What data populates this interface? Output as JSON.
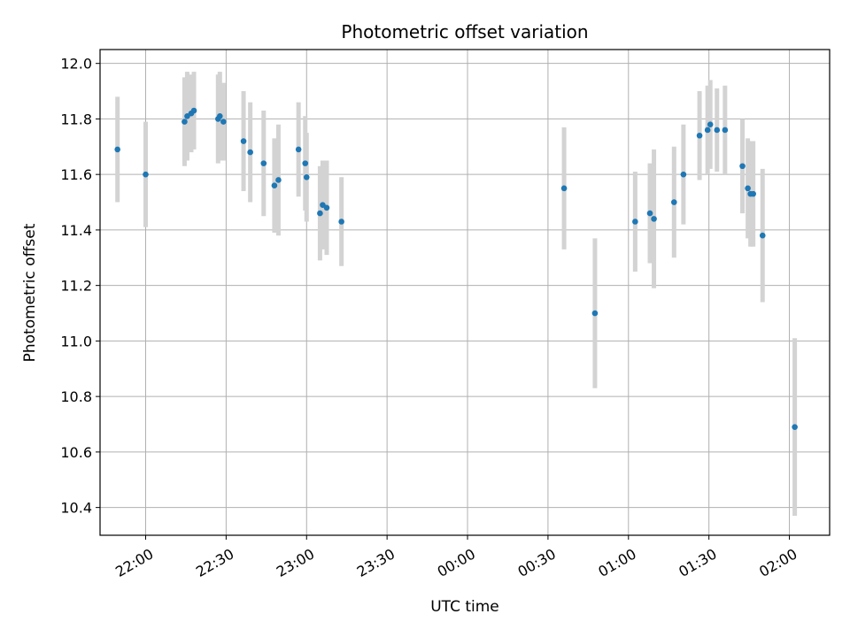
{
  "chart_data": {
    "type": "scatter",
    "title": "Photometric offset variation",
    "xlabel": "UTC time",
    "ylabel": "Photometric offset",
    "xlim": [
      "21:43",
      "02:15"
    ],
    "ylim": [
      10.3,
      12.05
    ],
    "x_ticks": [
      "22:00",
      "22:30",
      "23:00",
      "23:30",
      "00:00",
      "00:30",
      "01:00",
      "01:30",
      "02:00"
    ],
    "y_ticks": [
      10.4,
      10.6,
      10.8,
      11.0,
      11.2,
      11.4,
      11.6,
      11.8,
      12.0
    ],
    "grid": true,
    "marker_color": "#1f77b4",
    "errorbar_color": "#d3d3d3",
    "points": [
      {
        "x": "21:49:30",
        "y": 11.69,
        "err": 0.19
      },
      {
        "x": "22:00:00",
        "y": 11.6,
        "err": 0.19
      },
      {
        "x": "22:14:30",
        "y": 11.79,
        "err": 0.16
      },
      {
        "x": "22:15:30",
        "y": 11.81,
        "err": 0.16
      },
      {
        "x": "22:17:00",
        "y": 11.82,
        "err": 0.14
      },
      {
        "x": "22:18:00",
        "y": 11.83,
        "err": 0.14
      },
      {
        "x": "22:27:00",
        "y": 11.8,
        "err": 0.16
      },
      {
        "x": "22:27:40",
        "y": 11.81,
        "err": 0.16
      },
      {
        "x": "22:29:00",
        "y": 11.79,
        "err": 0.14
      },
      {
        "x": "22:36:30",
        "y": 11.72,
        "err": 0.18
      },
      {
        "x": "22:39:00",
        "y": 11.68,
        "err": 0.18
      },
      {
        "x": "22:44:00",
        "y": 11.64,
        "err": 0.19
      },
      {
        "x": "22:48:00",
        "y": 11.56,
        "err": 0.17
      },
      {
        "x": "22:49:30",
        "y": 11.58,
        "err": 0.2
      },
      {
        "x": "22:57:00",
        "y": 11.69,
        "err": 0.17
      },
      {
        "x": "22:59:30",
        "y": 11.64,
        "err": 0.17
      },
      {
        "x": "23:00:00",
        "y": 11.59,
        "err": 0.16
      },
      {
        "x": "23:05:00",
        "y": 11.46,
        "err": 0.17
      },
      {
        "x": "23:06:00",
        "y": 11.49,
        "err": 0.16
      },
      {
        "x": "23:07:30",
        "y": 11.48,
        "err": 0.17
      },
      {
        "x": "23:13:00",
        "y": 11.43,
        "err": 0.16
      },
      {
        "x": "00:36:00",
        "y": 11.55,
        "err": 0.22
      },
      {
        "x": "00:47:30",
        "y": 11.1,
        "err": 0.27
      },
      {
        "x": "01:02:30",
        "y": 11.43,
        "err": 0.18
      },
      {
        "x": "01:08:00",
        "y": 11.46,
        "err": 0.18
      },
      {
        "x": "01:09:30",
        "y": 11.44,
        "err": 0.25
      },
      {
        "x": "01:17:00",
        "y": 11.5,
        "err": 0.2
      },
      {
        "x": "01:20:30",
        "y": 11.6,
        "err": 0.18
      },
      {
        "x": "01:26:30",
        "y": 11.74,
        "err": 0.16
      },
      {
        "x": "01:29:30",
        "y": 11.76,
        "err": 0.16
      },
      {
        "x": "01:30:30",
        "y": 11.78,
        "err": 0.16
      },
      {
        "x": "01:33:00",
        "y": 11.76,
        "err": 0.15
      },
      {
        "x": "01:36:00",
        "y": 11.76,
        "err": 0.16
      },
      {
        "x": "01:42:30",
        "y": 11.63,
        "err": 0.17
      },
      {
        "x": "01:44:30",
        "y": 11.55,
        "err": 0.18
      },
      {
        "x": "01:45:30",
        "y": 11.53,
        "err": 0.19
      },
      {
        "x": "01:46:30",
        "y": 11.53,
        "err": 0.19
      },
      {
        "x": "01:50:00",
        "y": 11.38,
        "err": 0.24
      },
      {
        "x": "02:02:00",
        "y": 10.69,
        "err": 0.32
      }
    ]
  }
}
